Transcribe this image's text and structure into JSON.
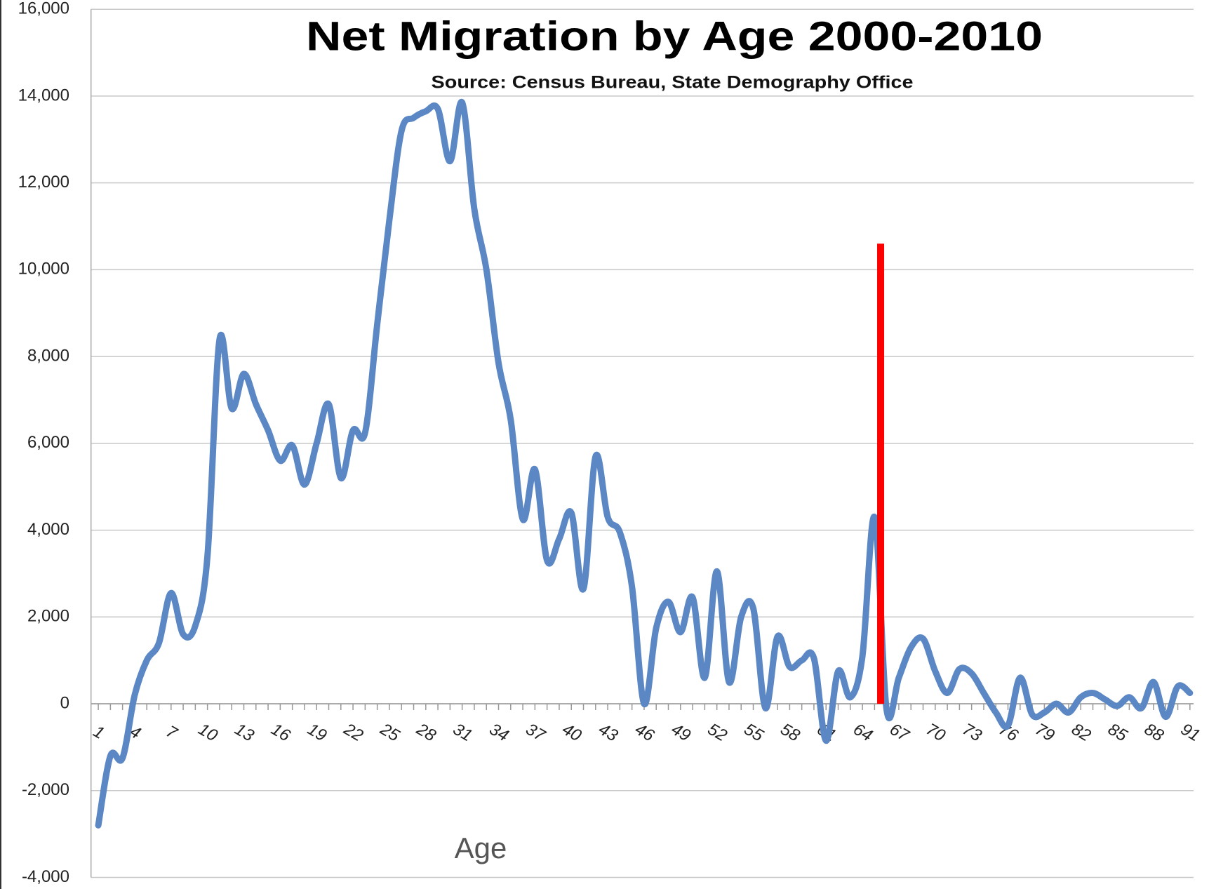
{
  "chart_data": {
    "type": "line",
    "title": "Net Migration by Age 2000-2010",
    "subtitle": "Source: Census Bureau, State Demography Office",
    "x_label": "Age",
    "x": [
      1,
      2,
      3,
      4,
      5,
      6,
      7,
      8,
      9,
      10,
      11,
      12,
      13,
      14,
      15,
      16,
      17,
      18,
      19,
      20,
      21,
      22,
      23,
      24,
      25,
      26,
      27,
      28,
      29,
      30,
      31,
      32,
      33,
      34,
      35,
      36,
      37,
      38,
      39,
      40,
      41,
      42,
      43,
      44,
      45,
      46,
      47,
      48,
      49,
      50,
      51,
      52,
      53,
      54,
      55,
      56,
      57,
      58,
      59,
      60,
      61,
      62,
      63,
      64,
      65,
      66,
      67,
      68,
      69,
      70,
      71,
      72,
      73,
      74,
      75,
      76,
      77,
      78,
      79,
      80,
      81,
      82,
      83,
      84,
      85,
      86,
      87,
      88,
      89,
      90,
      91
    ],
    "series": [
      {
        "name": "Net Migration",
        "color": "#5b87c5",
        "values": [
          -2800,
          -1200,
          -1250,
          200,
          1000,
          1400,
          2550,
          1600,
          1800,
          3400,
          8400,
          6800,
          7600,
          6900,
          6300,
          5600,
          5950,
          5050,
          6000,
          6900,
          5200,
          6300,
          6250,
          8750,
          11150,
          13200,
          13500,
          13650,
          13700,
          12500,
          13850,
          11400,
          10000,
          7850,
          6550,
          4250,
          5400,
          3300,
          3800,
          4400,
          2650,
          5700,
          4300,
          3950,
          2700,
          0,
          1750,
          2350,
          1650,
          2450,
          600,
          3050,
          500,
          2000,
          2200,
          -100,
          1550,
          850,
          1000,
          1050,
          -850,
          750,
          150,
          1100,
          4300,
          -150,
          600,
          1300,
          1500,
          750,
          250,
          800,
          700,
          250,
          -200,
          -500,
          600,
          -250,
          -200,
          0,
          -200,
          150,
          250,
          100,
          -50,
          150,
          -100,
          500,
          -300,
          400,
          250
        ]
      }
    ],
    "xlim": [
      0.4,
      91.3
    ],
    "xticks": [
      1,
      4,
      7,
      10,
      13,
      16,
      19,
      22,
      25,
      28,
      31,
      34,
      37,
      40,
      43,
      46,
      49,
      52,
      55,
      58,
      61,
      64,
      67,
      70,
      73,
      76,
      79,
      82,
      85,
      88,
      91
    ],
    "ylim": [
      -4000,
      16000
    ],
    "yticks": [
      {
        "value": -4000,
        "label": "-4,000"
      },
      {
        "value": -2000,
        "label": "-2,000"
      },
      0,
      {
        "value": 2000,
        "label": "2,000"
      },
      {
        "value": 4000,
        "label": "4,000"
      },
      {
        "value": 6000,
        "label": "6,000"
      },
      {
        "value": 8000,
        "label": "8,000"
      },
      {
        "value": 10000,
        "label": "10,000"
      },
      {
        "value": 12000,
        "label": "12,000"
      },
      {
        "value": 14000,
        "label": "14,000"
      },
      {
        "value": 16000,
        "label": "16,000"
      }
    ],
    "grid": true,
    "reference_line": {
      "x": 65.5,
      "ymax": 10600,
      "color": "#ff0000"
    }
  }
}
